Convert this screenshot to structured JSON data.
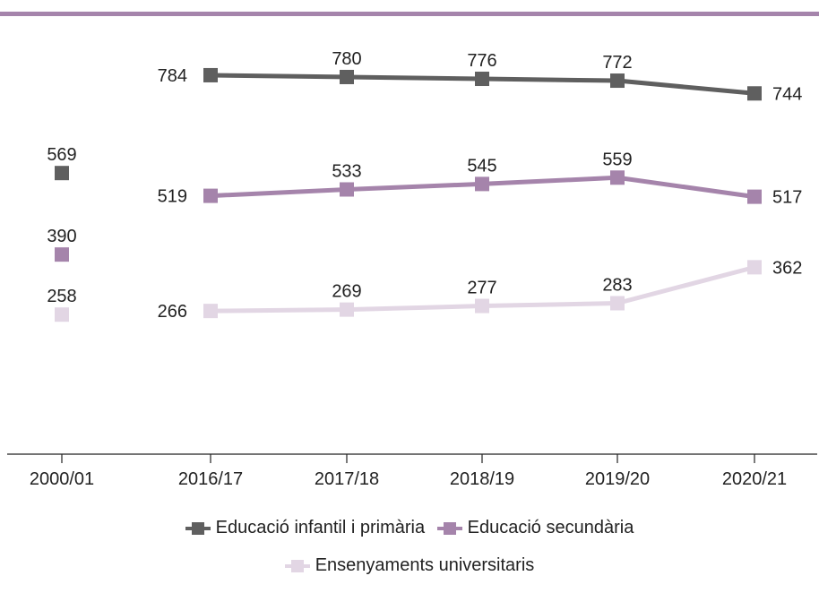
{
  "chart_data": {
    "type": "line",
    "categories": [
      "2000/01",
      "2016/17",
      "2017/18",
      "2018/19",
      "2019/20",
      "2020/21"
    ],
    "series": [
      {
        "name": "Educació infantil i primària",
        "values": [
          569,
          784,
          780,
          776,
          772,
          744
        ],
        "color": "#5f5f5f"
      },
      {
        "name": "Educació secundària",
        "values": [
          390,
          519,
          533,
          545,
          559,
          517
        ],
        "color": "#a584ab"
      },
      {
        "name": "Ensenyaments universitaris",
        "values": [
          258,
          266,
          269,
          277,
          283,
          362
        ],
        "color": "#e2d6e4"
      }
    ],
    "title": "",
    "xlabel": "",
    "ylabel": "",
    "grid": false,
    "legend_position": "bottom",
    "accent_color": "#a584ab",
    "note": "2000/01 shown as isolated markers not connected to the later series"
  }
}
